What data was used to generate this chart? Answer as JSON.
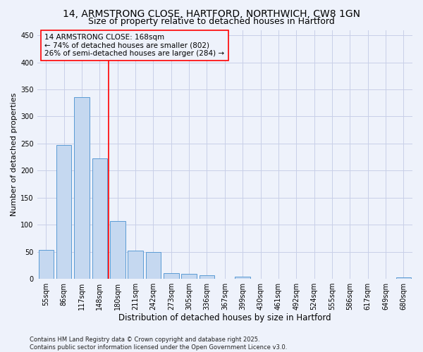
{
  "title_line1": "14, ARMSTRONG CLOSE, HARTFORD, NORTHWICH, CW8 1GN",
  "title_line2": "Size of property relative to detached houses in Hartford",
  "xlabel": "Distribution of detached houses by size in Hartford",
  "ylabel": "Number of detached properties",
  "categories": [
    "55sqm",
    "86sqm",
    "117sqm",
    "148sqm",
    "180sqm",
    "211sqm",
    "242sqm",
    "273sqm",
    "305sqm",
    "336sqm",
    "367sqm",
    "399sqm",
    "430sqm",
    "461sqm",
    "492sqm",
    "524sqm",
    "555sqm",
    "586sqm",
    "617sqm",
    "649sqm",
    "680sqm"
  ],
  "values": [
    53,
    247,
    336,
    222,
    107,
    52,
    50,
    10,
    9,
    6,
    0,
    4,
    0,
    0,
    0,
    0,
    0,
    0,
    0,
    0,
    3
  ],
  "bar_color": "#c5d8f0",
  "bar_edge_color": "#5b9bd5",
  "vline_x": 3.5,
  "vline_color": "red",
  "annotation_line1": "14 ARMSTRONG CLOSE: 168sqm",
  "annotation_line2": "← 74% of detached houses are smaller (802)",
  "annotation_line3": "26% of semi-detached houses are larger (284) →",
  "ylim": [
    0,
    460
  ],
  "yticks": [
    0,
    50,
    100,
    150,
    200,
    250,
    300,
    350,
    400,
    450
  ],
  "background_color": "#eef2fb",
  "grid_color": "#c8cfe8",
  "footer_text": "Contains HM Land Registry data © Crown copyright and database right 2025.\nContains public sector information licensed under the Open Government Licence v3.0.",
  "title_fontsize": 10,
  "subtitle_fontsize": 9,
  "xlabel_fontsize": 8.5,
  "ylabel_fontsize": 8,
  "tick_fontsize": 7,
  "annotation_fontsize": 7.5,
  "footer_fontsize": 6
}
